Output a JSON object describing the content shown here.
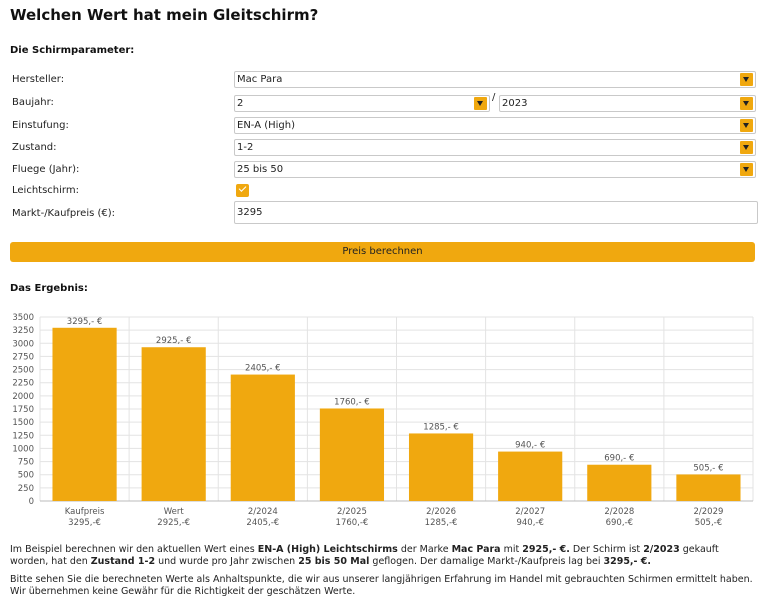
{
  "page_title": "Welchen Wert hat mein Gleitschirm?",
  "params": {
    "heading": "Die Schirmparameter:",
    "manufacturer": {
      "label": "Hersteller:",
      "value": "Mac Para"
    },
    "year": {
      "label": "Baujahr:",
      "month": "2",
      "separator": "/",
      "year": "2023"
    },
    "rating": {
      "label": "Einstufung:",
      "value": "EN-A (High)"
    },
    "condition": {
      "label": "Zustand:",
      "value": "1-2"
    },
    "flights": {
      "label": "Fluege (Jahr):",
      "value": "25 bis 50"
    },
    "light": {
      "label": "Leichtschirm:",
      "checked": true
    },
    "price": {
      "label": "Markt-/Kaufpreis (€):",
      "value": "3295"
    }
  },
  "calc_button": "Preis berechnen",
  "result_heading": "Das Ergebnis:",
  "colors": {
    "accent": "#f0a80f",
    "bar": "#f0a80f"
  },
  "chart_data": {
    "type": "bar",
    "categories": [
      "Kaufpreis",
      "Wert",
      "2/2024",
      "2/2025",
      "2/2026",
      "2/2027",
      "2/2028",
      "2/2029"
    ],
    "sublabels": [
      "3295,-€",
      "2925,-€",
      "2405,-€",
      "1760,-€",
      "1285,-€",
      "940,-€",
      "690,-€",
      "505,-€"
    ],
    "values": [
      3295,
      2925,
      2405,
      1760,
      1285,
      940,
      690,
      505
    ],
    "data_labels": [
      "3295,- €",
      "2925,- €",
      "2405,- €",
      "1760,- €",
      "1285,- €",
      "940,- €",
      "690,- €",
      "505,- €"
    ],
    "yticks": [
      0,
      250,
      500,
      750,
      1000,
      1250,
      1500,
      1750,
      2000,
      2250,
      2500,
      2750,
      3000,
      3250,
      3500
    ],
    "ylim": [
      0,
      3500
    ],
    "grid": true
  },
  "summary": {
    "p1": [
      "Im Beispiel berechnen wir den aktuellen Wert eines ",
      "EN-A (High) Leichtschirms",
      " der Marke ",
      "Mac Para",
      " mit ",
      "2925,- €.",
      " Der Schirm ist ",
      "2/2023",
      " gekauft worden, hat den ",
      "Zustand 1-2",
      " und wurde pro Jahr zwischen ",
      "25 bis 50 Mal",
      " geflogen. Der damalige Markt-/Kaufpreis lag bei ",
      "3295,- €."
    ],
    "p2": "Bitte sehen Sie die berechneten Werte als Anhaltspunkte, die wir aus unserer langjährigen Erfahrung im Handel mit gebrauchten Schirmen ermittelt haben. Wir übernehmen keine Gewähr für die Richtigkeit der geschätzen Werte."
  }
}
